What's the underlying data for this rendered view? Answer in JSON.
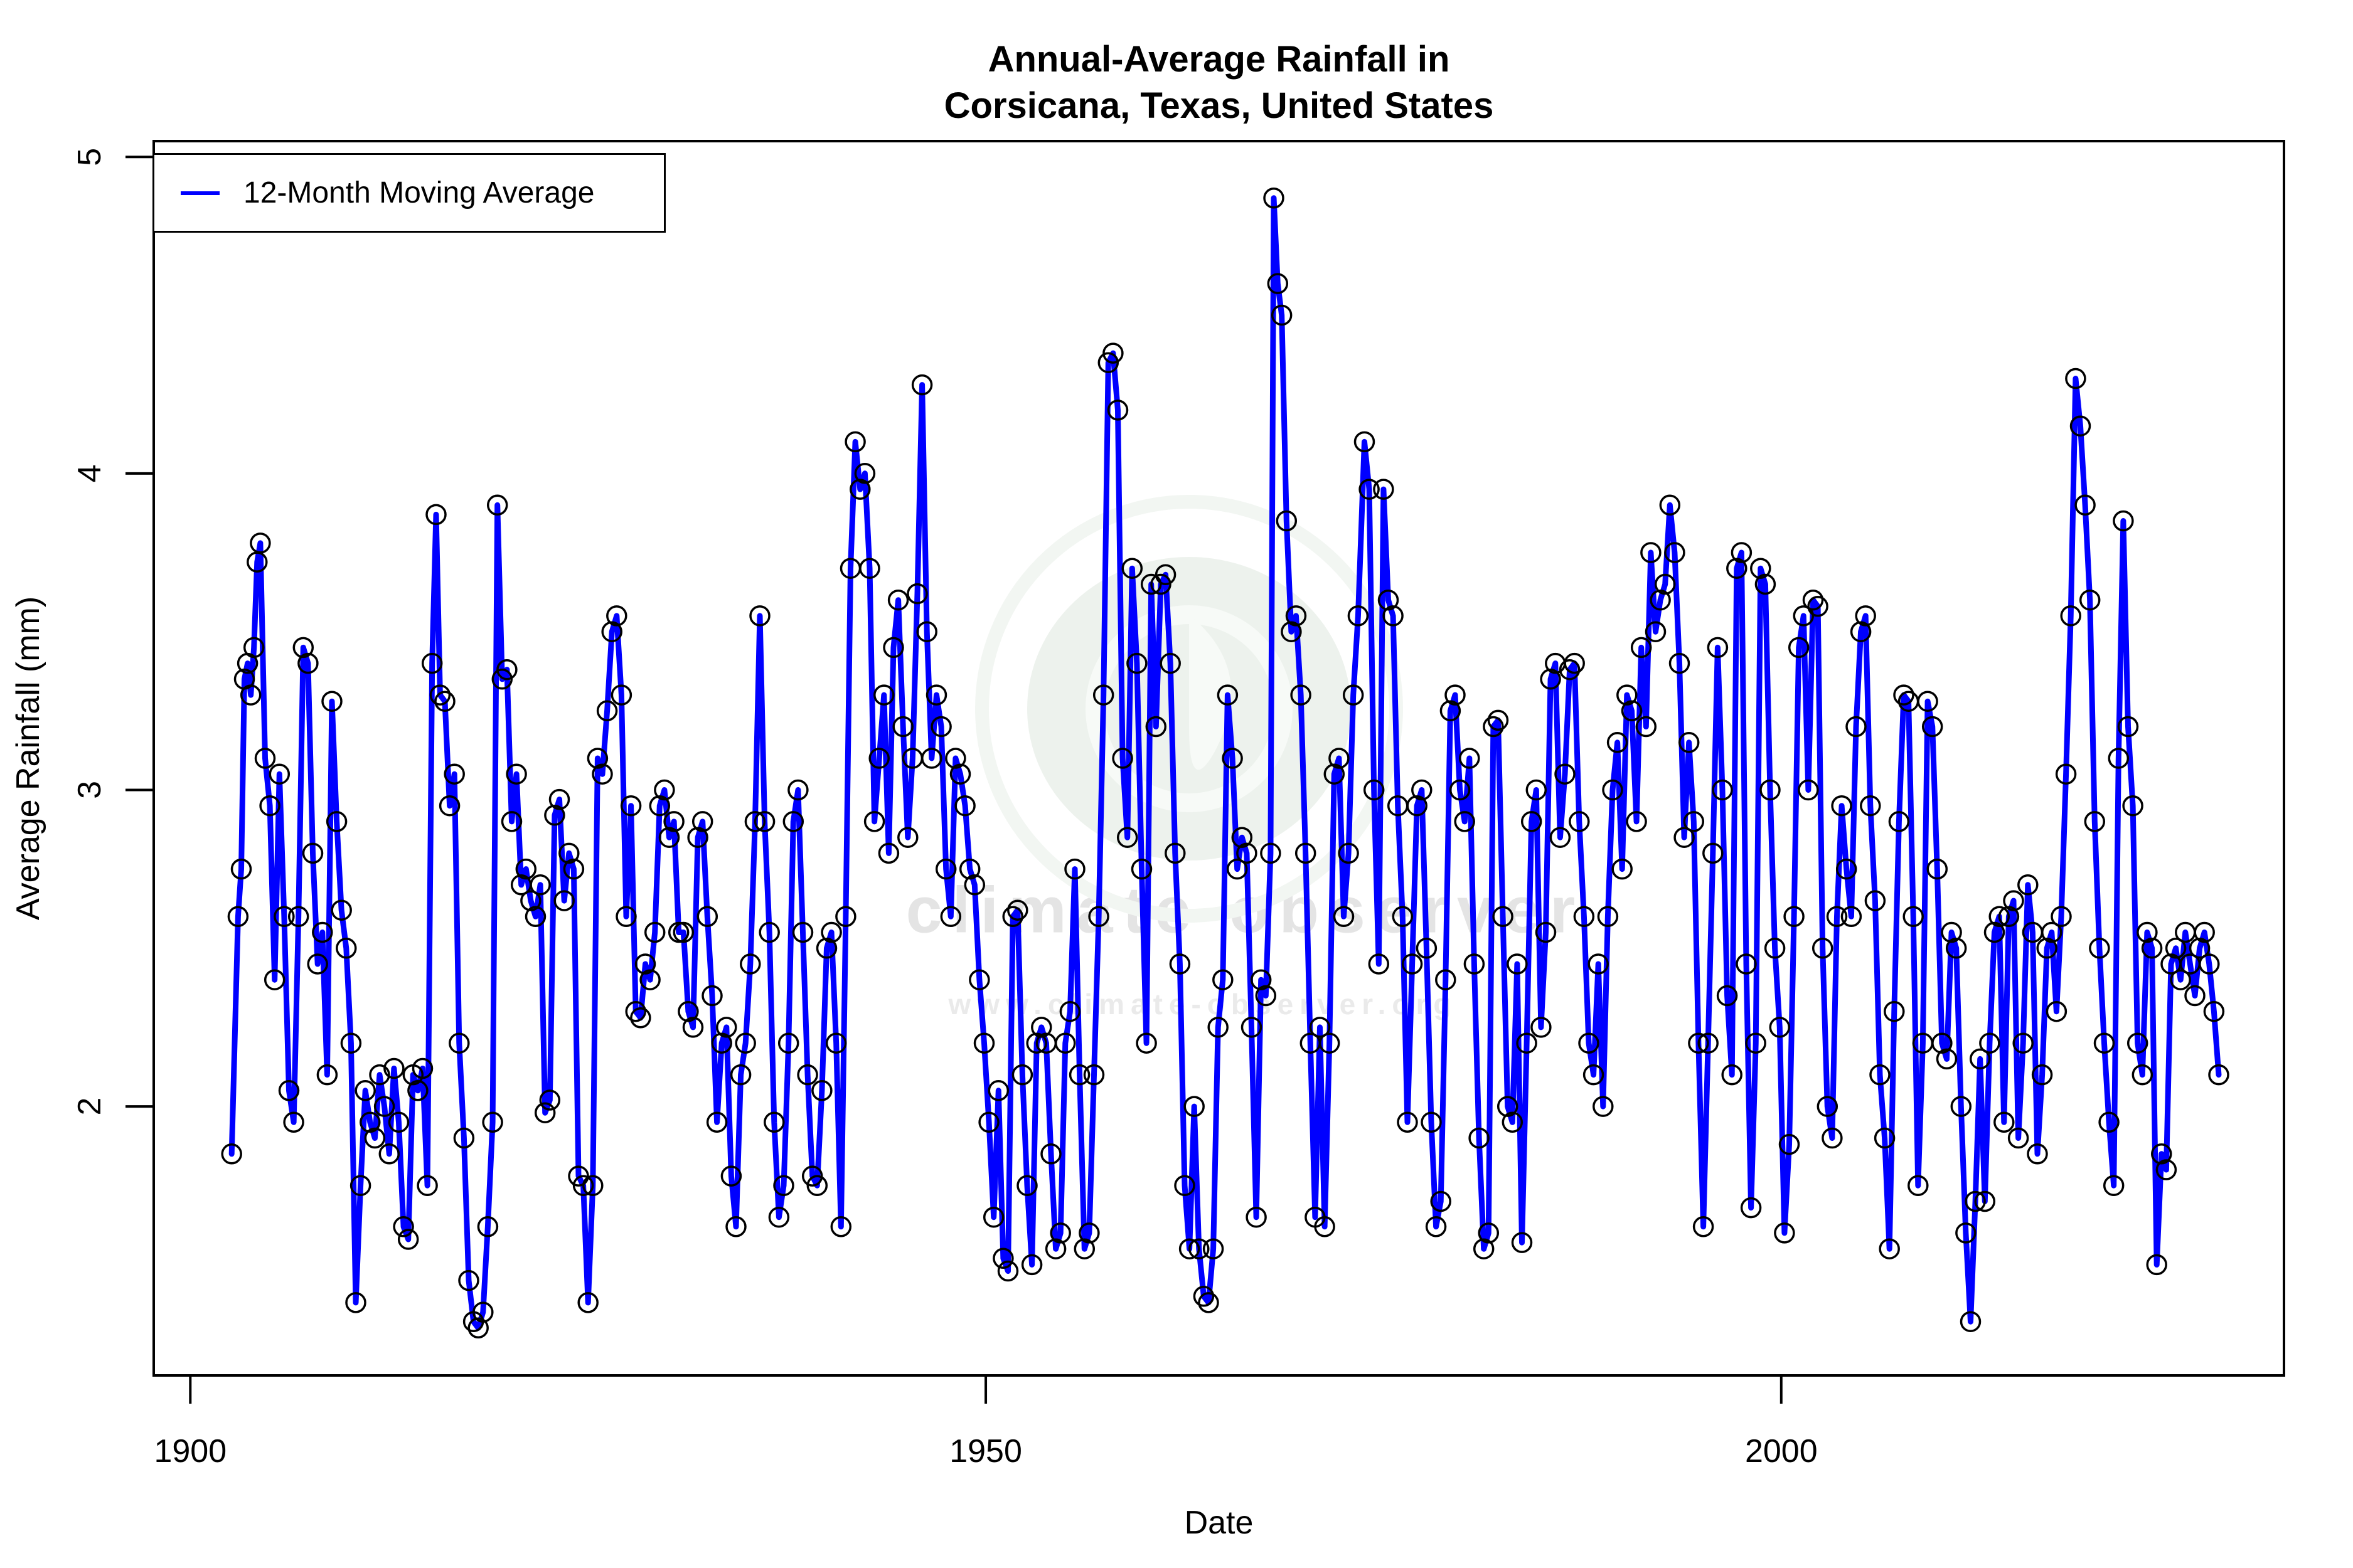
{
  "title": {
    "line1": "Annual-Average Rainfall in",
    "line2": "Corsicana, Texas, United States"
  },
  "legend": {
    "label": "12-Month Moving Average"
  },
  "watermark": {
    "text": "climate observer",
    "url": "www.climate-observer.org",
    "logo_color": "#edf2ed",
    "logo_detail_color": "#f7faf7",
    "text_color": "#e4e4e4"
  },
  "colors": {
    "series": "#0000FF",
    "marker_stroke": "#000000",
    "axis": "#000000",
    "background": "#ffffff"
  },
  "chart_data": {
    "type": "line",
    "title": "Annual-Average Rainfall in Corsicana, Texas, United States",
    "xlabel": "Date",
    "ylabel": "Average Rainfall (mm)",
    "xlim": [
      1897.7,
      2031.6
    ],
    "ylim": [
      1.15,
      5.05
    ],
    "x_ticks": [
      1900,
      1950,
      2000
    ],
    "y_ticks": [
      2,
      3,
      4,
      5
    ],
    "grid": false,
    "legend_position": "top-left",
    "series": [
      {
        "name": "12-Month Moving Average",
        "color": "#0000FF",
        "marker": "open-circle",
        "x": [
          1902.6,
          1903.0,
          1903.2,
          1903.4,
          1903.6,
          1903.8,
          1904.0,
          1904.2,
          1904.4,
          1904.7,
          1905.0,
          1905.3,
          1905.6,
          1905.9,
          1906.2,
          1906.5,
          1906.8,
          1907.1,
          1907.4,
          1907.7,
          1908.0,
          1908.3,
          1908.6,
          1908.9,
          1909.2,
          1909.5,
          1909.8,
          1910.1,
          1910.4,
          1910.7,
          1911.0,
          1911.3,
          1911.6,
          1911.9,
          1912.2,
          1912.5,
          1912.8,
          1913.1,
          1913.4,
          1913.7,
          1914.0,
          1914.3,
          1914.6,
          1914.9,
          1915.2,
          1915.45,
          1915.7,
          1916.0,
          1916.3,
          1916.6,
          1916.9,
          1917.2,
          1917.5,
          1917.8,
          1918.1,
          1918.4,
          1918.7,
          1919.0,
          1919.3,
          1919.6,
          1919.9,
          1920.2,
          1920.5,
          1920.8,
          1921.1,
          1921.4,
          1921.7,
          1922.0,
          1922.3,
          1922.6,
          1922.9,
          1923.2,
          1923.5,
          1923.8,
          1924.1,
          1924.4,
          1924.7,
          1925.0,
          1925.3,
          1925.6,
          1925.9,
          1926.2,
          1926.5,
          1926.8,
          1927.1,
          1927.4,
          1927.7,
          1928.0,
          1928.3,
          1928.6,
          1928.9,
          1929.2,
          1929.5,
          1929.8,
          1930.1,
          1930.4,
          1930.7,
          1931.0,
          1931.3,
          1931.6,
          1931.9,
          1932.2,
          1932.5,
          1932.8,
          1933.1,
          1933.4,
          1933.7,
          1934.0,
          1934.3,
          1934.6,
          1934.9,
          1935.2,
          1935.5,
          1935.8,
          1936.1,
          1936.4,
          1936.7,
          1937.0,
          1937.3,
          1937.6,
          1937.9,
          1938.2,
          1938.5,
          1938.8,
          1939.1,
          1939.4,
          1939.7,
          1940.0,
          1940.3,
          1940.6,
          1940.9,
          1941.2,
          1941.5,
          1941.8,
          1942.1,
          1942.4,
          1942.7,
          1943.0,
          1943.3,
          1943.6,
          1943.9,
          1944.2,
          1944.5,
          1944.8,
          1945.1,
          1945.4,
          1945.7,
          1946.0,
          1946.3,
          1946.6,
          1946.9,
          1947.2,
          1947.5,
          1947.8,
          1948.1,
          1948.4,
          1948.7,
          1949.0,
          1949.3,
          1949.6,
          1949.9,
          1950.2,
          1950.5,
          1950.8,
          1951.1,
          1951.4,
          1951.7,
          1952.0,
          1952.3,
          1952.6,
          1952.9,
          1953.2,
          1953.5,
          1953.8,
          1954.1,
          1954.4,
          1954.7,
          1955.0,
          1955.3,
          1955.6,
          1955.9,
          1956.2,
          1956.5,
          1956.8,
          1957.1,
          1957.4,
          1957.7,
          1958.0,
          1958.3,
          1958.6,
          1958.9,
          1959.2,
          1959.5,
          1959.8,
          1960.1,
          1960.4,
          1960.7,
          1961.0,
          1961.3,
          1961.6,
          1961.9,
          1962.2,
          1962.5,
          1962.8,
          1963.1,
          1963.4,
          1963.7,
          1964.0,
          1964.3,
          1964.6,
          1964.9,
          1965.2,
          1965.5,
          1965.8,
          1966.1,
          1966.4,
          1966.7,
          1967.0,
          1967.3,
          1967.6,
          1967.9,
          1968.1,
          1968.35,
          1968.6,
          1968.9,
          1969.2,
          1969.5,
          1969.8,
          1970.1,
          1970.4,
          1970.7,
          1971.0,
          1971.3,
          1971.6,
          1971.9,
          1972.2,
          1972.5,
          1972.8,
          1973.1,
          1973.4,
          1973.8,
          1974.1,
          1974.4,
          1974.7,
          1975.0,
          1975.3,
          1975.6,
          1975.9,
          1976.2,
          1976.5,
          1976.8,
          1977.1,
          1977.4,
          1977.7,
          1978.0,
          1978.3,
          1978.6,
          1978.9,
          1979.2,
          1979.5,
          1979.8,
          1980.1,
          1980.4,
          1980.7,
          1981.0,
          1981.3,
          1981.6,
          1981.9,
          1982.2,
          1982.5,
          1982.8,
          1983.1,
          1983.4,
          1983.7,
          1984.0,
          1984.3,
          1984.6,
          1984.9,
          1985.2,
          1985.5,
          1985.8,
          1986.1,
          1986.4,
          1986.7,
          1987.0,
          1987.3,
          1987.6,
          1987.9,
          1988.2,
          1988.5,
          1988.8,
          1989.1,
          1989.4,
          1989.7,
          1990.0,
          1990.3,
          1990.6,
          1990.9,
          1991.2,
          1991.5,
          1991.8,
          1992.1,
          1992.4,
          1992.7,
          1993.0,
          1993.3,
          1993.6,
          1993.9,
          1994.2,
          1994.5,
          1994.8,
          1995.1,
          1995.4,
          1995.7,
          1996.0,
          1996.3,
          1996.6,
          1996.9,
          1997.2,
          1997.5,
          1997.8,
          1998.1,
          1998.4,
          1998.7,
          1999.0,
          1999.3,
          1999.6,
          1999.9,
          2000.2,
          2000.5,
          2000.8,
          2001.1,
          2001.4,
          2001.7,
          2002.0,
          2002.3,
          2002.6,
          2002.9,
          2003.2,
          2003.5,
          2003.8,
          2004.1,
          2004.4,
          2004.7,
          2005.0,
          2005.3,
          2005.6,
          2005.9,
          2006.2,
          2006.5,
          2006.8,
          2007.1,
          2007.4,
          2007.7,
          2008.0,
          2008.3,
          2008.6,
          2008.9,
          2009.2,
          2009.5,
          2009.8,
          2010.1,
          2010.4,
          2010.7,
          2011.0,
          2011.3,
          2011.6,
          2011.9,
          2012.2,
          2012.5,
          2012.8,
          2013.1,
          2013.4,
          2013.7,
          2014.0,
          2014.3,
          2014.6,
          2014.9,
          2015.2,
          2015.5,
          2015.8,
          2016.1,
          2016.4,
          2016.7,
          2017.0,
          2017.3,
          2017.6,
          2017.9,
          2018.2,
          2018.5,
          2018.8,
          2019.1,
          2019.4,
          2019.7,
          2020.0,
          2020.3,
          2020.6,
          2020.9,
          2021.2,
          2021.5,
          2021.8,
          2022.1,
          2022.4,
          2022.7,
          2023.0,
          2023.3,
          2023.6,
          2023.9,
          2024.2,
          2024.5,
          2024.8,
          2025.1,
          2025.4,
          2025.7,
          2026.0,
          2026.3,
          2026.6,
          2026.9,
          2027.2,
          2027.5
        ],
        "y": [
          1.85,
          2.6,
          2.75,
          3.35,
          3.4,
          3.3,
          3.45,
          3.72,
          3.78,
          3.1,
          2.95,
          2.4,
          3.05,
          2.6,
          2.05,
          1.95,
          2.6,
          3.45,
          3.4,
          2.8,
          2.45,
          2.55,
          2.1,
          3.28,
          2.9,
          2.62,
          2.5,
          2.2,
          1.38,
          1.75,
          2.05,
          1.95,
          1.9,
          2.1,
          2.0,
          1.85,
          2.12,
          1.95,
          1.62,
          1.58,
          2.1,
          2.05,
          2.12,
          1.75,
          3.4,
          3.87,
          3.3,
          3.28,
          2.95,
          3.05,
          2.2,
          1.9,
          1.45,
          1.32,
          1.3,
          1.35,
          1.62,
          1.95,
          3.9,
          3.35,
          3.38,
          2.9,
          3.05,
          2.7,
          2.75,
          2.65,
          2.6,
          2.7,
          1.98,
          2.02,
          2.92,
          2.97,
          2.65,
          2.8,
          2.75,
          1.78,
          1.75,
          1.38,
          1.75,
          3.1,
          3.05,
          3.25,
          3.5,
          3.55,
          3.3,
          2.6,
          2.95,
          2.3,
          2.28,
          2.45,
          2.4,
          2.55,
          2.95,
          3.0,
          2.85,
          2.9,
          2.55,
          2.55,
          2.3,
          2.25,
          2.85,
          2.9,
          2.6,
          2.35,
          1.95,
          2.2,
          2.25,
          1.78,
          1.62,
          2.1,
          2.2,
          2.45,
          2.9,
          3.55,
          2.9,
          2.55,
          1.95,
          1.65,
          1.75,
          2.2,
          2.9,
          3.0,
          2.55,
          2.1,
          1.78,
          1.75,
          2.05,
          2.5,
          2.55,
          2.2,
          1.62,
          2.6,
          3.7,
          4.1,
          3.95,
          4.0,
          3.7,
          2.9,
          3.1,
          3.3,
          2.8,
          3.45,
          3.6,
          3.2,
          2.85,
          3.1,
          3.62,
          4.28,
          3.5,
          3.1,
          3.3,
          3.2,
          2.75,
          2.6,
          3.1,
          3.05,
          2.95,
          2.75,
          2.7,
          2.4,
          2.2,
          1.95,
          1.65,
          2.05,
          1.52,
          1.48,
          2.6,
          2.62,
          2.1,
          1.75,
          1.5,
          2.2,
          2.25,
          2.2,
          1.85,
          1.55,
          1.6,
          2.2,
          2.3,
          2.75,
          2.1,
          1.55,
          1.6,
          2.1,
          2.6,
          3.3,
          4.35,
          4.38,
          4.2,
          3.1,
          2.85,
          3.7,
          3.4,
          2.75,
          2.2,
          3.65,
          3.2,
          3.65,
          3.68,
          3.4,
          2.8,
          2.45,
          1.75,
          1.55,
          2.0,
          1.55,
          1.4,
          1.38,
          1.55,
          2.25,
          2.4,
          3.3,
          3.1,
          2.75,
          2.85,
          2.8,
          2.25,
          1.65,
          2.4,
          2.35,
          2.8,
          4.87,
          4.6,
          4.5,
          3.85,
          3.5,
          3.55,
          3.3,
          2.8,
          2.2,
          1.65,
          2.25,
          1.62,
          2.2,
          3.05,
          3.1,
          2.6,
          2.8,
          3.3,
          3.55,
          4.1,
          3.95,
          3.0,
          2.45,
          3.95,
          3.6,
          3.55,
          2.95,
          2.6,
          1.95,
          2.45,
          2.95,
          3.0,
          2.5,
          1.95,
          1.62,
          1.7,
          2.4,
          3.25,
          3.3,
          3.0,
          2.9,
          3.1,
          2.45,
          1.9,
          1.55,
          1.6,
          3.2,
          3.22,
          2.6,
          2.0,
          1.95,
          2.45,
          1.57,
          2.2,
          2.9,
          3.0,
          2.25,
          2.55,
          3.35,
          3.4,
          2.85,
          3.05,
          3.38,
          3.4,
          2.9,
          2.6,
          2.2,
          2.1,
          2.45,
          2.0,
          2.6,
          3.0,
          3.15,
          2.75,
          3.3,
          3.25,
          2.9,
          3.45,
          3.2,
          3.75,
          3.5,
          3.6,
          3.65,
          3.9,
          3.75,
          3.4,
          2.85,
          3.15,
          2.9,
          2.2,
          1.62,
          2.2,
          2.8,
          3.45,
          3.0,
          2.35,
          2.1,
          3.7,
          3.75,
          2.45,
          1.68,
          2.2,
          3.7,
          3.65,
          3.0,
          2.5,
          2.25,
          1.6,
          1.88,
          2.6,
          3.45,
          3.55,
          3.0,
          3.6,
          3.58,
          2.5,
          2.0,
          1.9,
          2.6,
          2.95,
          2.75,
          2.6,
          3.2,
          3.5,
          3.55,
          2.95,
          2.65,
          2.1,
          1.9,
          1.55,
          2.3,
          2.9,
          3.3,
          3.28,
          2.6,
          1.75,
          2.2,
          3.28,
          3.2,
          2.75,
          2.2,
          2.15,
          2.55,
          2.5,
          2.0,
          1.6,
          1.32,
          1.7,
          2.15,
          1.7,
          2.2,
          2.55,
          2.6,
          1.95,
          2.6,
          2.65,
          1.9,
          2.2,
          2.7,
          2.55,
          1.85,
          2.1,
          2.5,
          2.55,
          2.3,
          2.6,
          3.05,
          3.55,
          4.3,
          4.15,
          3.9,
          3.6,
          2.9,
          2.5,
          2.2,
          1.95,
          1.75,
          3.1,
          3.85,
          3.2,
          2.95,
          2.2,
          2.1,
          2.55,
          2.5,
          1.5,
          1.85,
          1.8,
          2.45,
          2.5,
          2.4,
          2.55,
          2.45,
          2.35,
          2.5,
          2.55,
          2.45,
          2.3,
          2.1
        ]
      }
    ]
  }
}
